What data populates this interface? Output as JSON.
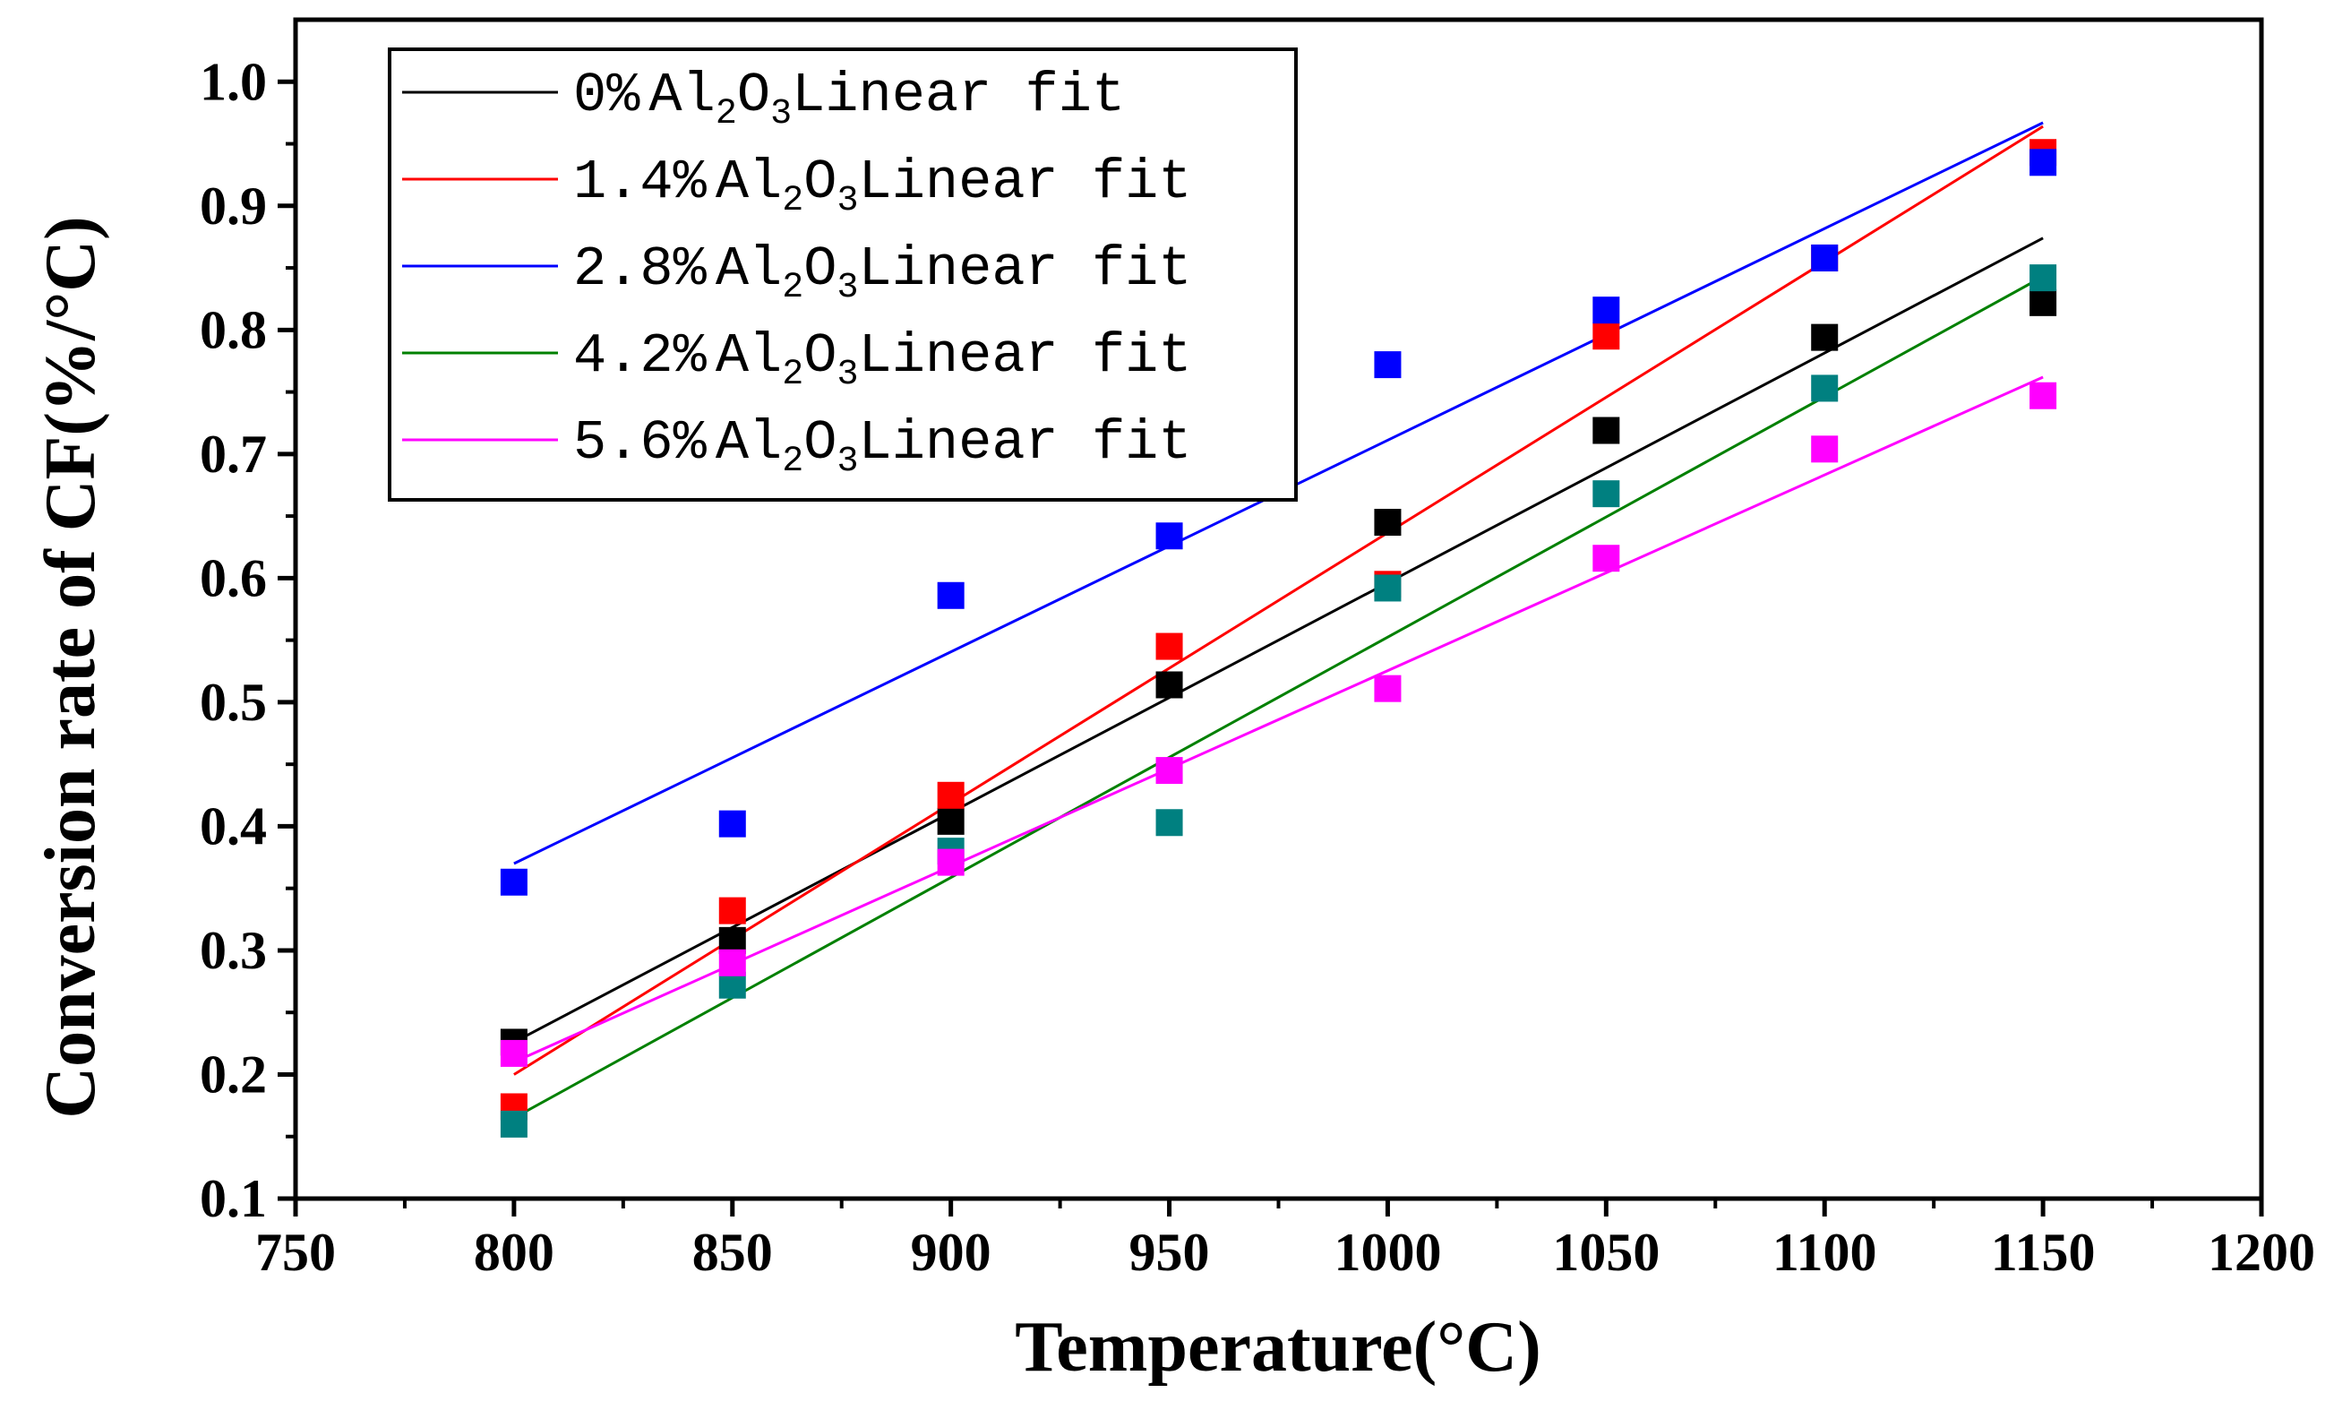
{
  "chart_data": {
    "type": "scatter",
    "xlabel": "Temperature(°C)",
    "ylabel": "Conversion rate of CF(%/°C)",
    "xlim": [
      750,
      1200
    ],
    "ylim": [
      0.1,
      1.05
    ],
    "x_ticks": [
      750,
      800,
      850,
      900,
      950,
      1000,
      1050,
      1100,
      1150,
      1200
    ],
    "y_ticks": [
      0.1,
      0.2,
      0.3,
      0.4,
      0.5,
      0.6,
      0.7,
      0.8,
      0.9,
      1.0
    ],
    "x_tick_labels": [
      "750",
      "800",
      "850",
      "900",
      "950",
      "1000",
      "1050",
      "1100",
      "1150",
      "1200"
    ],
    "y_tick_labels": [
      "0.1",
      "0.2",
      "0.3",
      "0.4",
      "0.5",
      "0.6",
      "0.7",
      "0.8",
      "0.9",
      "1.0"
    ],
    "legend_position": "top-left",
    "x": [
      800,
      850,
      900,
      950,
      1000,
      1050,
      1100,
      1150
    ],
    "series": [
      {
        "name": "0% Al2O3Linear fit",
        "legend_prefix": "0%",
        "legend_formula": [
          "Al",
          "2",
          "O",
          "3"
        ],
        "legend_suffix": "Linear fit",
        "marker_color": "#000000",
        "line_color": "#000000",
        "values": [
          0.226,
          0.308,
          0.404,
          0.514,
          0.645,
          0.719,
          0.794,
          0.822
        ],
        "fit": [
          [
            800,
            0.226
          ],
          [
            1150,
            0.874
          ]
        ]
      },
      {
        "name": "1.4% Al2O3Linear fit",
        "legend_prefix": "1.4%",
        "legend_formula": [
          "Al",
          "2",
          "O",
          "3"
        ],
        "legend_suffix": "Linear fit",
        "marker_color": "#ff0000",
        "line_color": "#ff0000",
        "values": [
          0.174,
          0.332,
          0.425,
          0.545,
          0.595,
          0.795,
          0.858,
          0.943
        ],
        "fit": [
          [
            800,
            0.2
          ],
          [
            1150,
            0.964
          ]
        ]
      },
      {
        "name": "2.8% Al2O3Linear fit",
        "legend_prefix": "2.8%",
        "legend_formula": [
          "Al",
          "2",
          "O",
          "3"
        ],
        "legend_suffix": "Linear fit",
        "marker_color": "#0000ff",
        "line_color": "#0000ff",
        "values": [
          0.355,
          0.402,
          0.586,
          0.634,
          0.772,
          0.816,
          0.858,
          0.935
        ],
        "fit": [
          [
            800,
            0.37
          ],
          [
            1150,
            0.967
          ]
        ]
      },
      {
        "name": "4.2% Al2O3Linear fit",
        "legend_prefix": "4.2%",
        "legend_formula": [
          "Al",
          "2",
          "O",
          "3"
        ],
        "legend_suffix": "Linear fit",
        "marker_color": "#008080",
        "line_color": "#008000",
        "values": [
          0.16,
          0.272,
          0.38,
          0.403,
          0.592,
          0.668,
          0.753,
          0.842
        ],
        "fit": [
          [
            800,
            0.165
          ],
          [
            1150,
            0.843
          ]
        ]
      },
      {
        "name": "5.6% Al2O3Linear fit",
        "legend_prefix": "5.6%",
        "legend_formula": [
          "Al",
          "2",
          "O",
          "3"
        ],
        "legend_suffix": "Linear fit",
        "marker_color": "#ff00ff",
        "line_color": "#ff00ff",
        "values": [
          0.217,
          0.29,
          0.371,
          0.445,
          0.511,
          0.616,
          0.704,
          0.747
        ],
        "fit": [
          [
            800,
            0.21
          ],
          [
            1150,
            0.762
          ]
        ]
      }
    ]
  }
}
